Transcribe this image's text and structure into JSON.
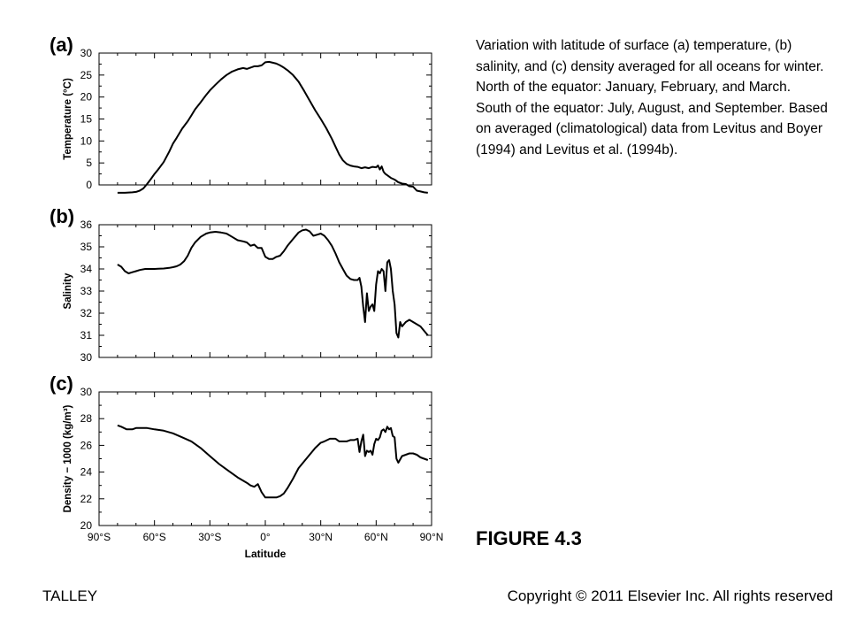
{
  "caption": "Variation with latitude of surface (a) temperature, (b) salinity, and (c) density averaged for all oceans for winter. North of the equator: January, February, and March. South of the equator: July, August, and September. Based on averaged (climatological) data from Levitus and Boyer (1994) and Levitus et al. (1994b).",
  "figure_label": "FIGURE 4.3",
  "footer": {
    "left": "TALLEY",
    "right": "Copyright © 2011 Elsevier Inc. All rights reserved"
  },
  "chart_data": [
    {
      "type": "line",
      "panel_label": "(a)",
      "ylabel": "Temperature (°C)",
      "xlabel": "",
      "xlim": [
        -90,
        90
      ],
      "ylim": [
        0,
        30
      ],
      "yticks": [
        "0",
        "5",
        "10",
        "15",
        "20",
        "25",
        "30"
      ],
      "x": [
        -80,
        -76,
        -72,
        -70,
        -68,
        -66,
        -64,
        -62,
        -60,
        -58,
        -55,
        -52,
        -50,
        -48,
        -45,
        -42,
        -40,
        -38,
        -35,
        -32,
        -30,
        -27,
        -24,
        -21,
        -18,
        -15,
        -12,
        -10,
        -8,
        -6,
        -4,
        -2,
        0,
        2,
        4,
        6,
        8,
        10,
        12,
        15,
        18,
        21,
        24,
        27,
        30,
        33,
        36,
        38,
        40,
        42,
        44,
        46,
        48,
        50,
        52,
        54,
        56,
        58,
        60,
        61,
        62,
        63,
        64,
        65,
        66,
        68,
        70,
        72,
        74,
        76,
        78,
        80,
        82,
        84,
        86,
        88
      ],
      "y": [
        -1.8,
        -1.8,
        -1.7,
        -1.6,
        -1.3,
        -0.8,
        0.2,
        1.3,
        2.5,
        3.5,
        5.2,
        7.6,
        9.4,
        10.7,
        12.8,
        14.5,
        15.8,
        17.2,
        18.8,
        20.5,
        21.5,
        22.8,
        24,
        25,
        25.8,
        26.3,
        26.6,
        26.4,
        26.7,
        27,
        27,
        27.2,
        27.9,
        28,
        27.8,
        27.6,
        27.2,
        26.7,
        26.1,
        25,
        23.5,
        21.4,
        19.2,
        17,
        15,
        12.9,
        10.5,
        8.7,
        6.9,
        5.6,
        4.8,
        4.4,
        4.2,
        4.1,
        3.8,
        4.0,
        3.8,
        4.1,
        4.0,
        4.4,
        3.5,
        4.2,
        3.0,
        2.5,
        2.2,
        1.6,
        1.2,
        0.6,
        0.3,
        0.2,
        -0.3,
        -0.4,
        -1.3,
        -1.5,
        -1.7,
        -1.8
      ]
    },
    {
      "type": "line",
      "panel_label": "(b)",
      "ylabel": "Salinity",
      "xlabel": "",
      "xlim": [
        -90,
        90
      ],
      "ylim": [
        30,
        36
      ],
      "yticks": [
        "30",
        "31",
        "32",
        "33",
        "34",
        "35",
        "36"
      ],
      "x": [
        -80,
        -78,
        -76,
        -74,
        -72,
        -70,
        -68,
        -65,
        -62,
        -60,
        -58,
        -55,
        -52,
        -50,
        -48,
        -46,
        -44,
        -42,
        -40,
        -38,
        -35,
        -32,
        -30,
        -27,
        -24,
        -21,
        -18,
        -15,
        -12,
        -10,
        -8,
        -6,
        -4,
        -2,
        0,
        2,
        4,
        6,
        8,
        10,
        12,
        15,
        18,
        20,
        22,
        24,
        26,
        28,
        30,
        32,
        34,
        36,
        38,
        40,
        42,
        44,
        46,
        48,
        50,
        51,
        52,
        53,
        54,
        55,
        56,
        57,
        58,
        59,
        60,
        61,
        62,
        63,
        64,
        65,
        66,
        67,
        68,
        69,
        70,
        71,
        72,
        73,
        74,
        75,
        76,
        78,
        80,
        82,
        84,
        86,
        88
      ],
      "y": [
        34.2,
        34.1,
        33.9,
        33.8,
        33.85,
        33.9,
        33.95,
        34,
        34,
        34,
        34.01,
        34.02,
        34.05,
        34.08,
        34.12,
        34.2,
        34.35,
        34.6,
        34.95,
        35.2,
        35.45,
        35.6,
        35.65,
        35.68,
        35.65,
        35.6,
        35.45,
        35.3,
        35.25,
        35.2,
        35.05,
        35.1,
        34.95,
        34.95,
        34.55,
        34.45,
        34.45,
        34.55,
        34.6,
        34.8,
        35.05,
        35.35,
        35.65,
        35.75,
        35.78,
        35.7,
        35.5,
        35.55,
        35.6,
        35.5,
        35.3,
        35.05,
        34.7,
        34.3,
        34.0,
        33.7,
        33.55,
        33.5,
        33.5,
        33.6,
        33.2,
        32.3,
        31.6,
        32.9,
        32.1,
        32.3,
        32.4,
        32.1,
        33.3,
        33.9,
        33.8,
        34.0,
        33.9,
        33.0,
        34.3,
        34.4,
        34.0,
        33.0,
        32.4,
        31.1,
        30.9,
        31.6,
        31.4,
        31.5,
        31.6,
        31.7,
        31.6,
        31.5,
        31.4,
        31.2,
        31.0
      ]
    },
    {
      "type": "line",
      "panel_label": "(c)",
      "ylabel": "Density − 1000 (kg/m³)",
      "xlabel": "Latitude",
      "xlim": [
        -90,
        90
      ],
      "ylim": [
        20,
        30
      ],
      "yticks": [
        "20",
        "22",
        "24",
        "26",
        "28",
        "30"
      ],
      "xticks": [
        "90°S",
        "60°S",
        "30°S",
        "0°",
        "30°N",
        "60°N",
        "90°N"
      ],
      "x": [
        -80,
        -78,
        -75,
        -72,
        -70,
        -67,
        -64,
        -60,
        -55,
        -50,
        -45,
        -40,
        -35,
        -30,
        -25,
        -20,
        -15,
        -10,
        -8,
        -6,
        -4,
        -2,
        0,
        2,
        4,
        6,
        8,
        10,
        12,
        15,
        18,
        21,
        24,
        27,
        30,
        32,
        35,
        38,
        40,
        42,
        44,
        46,
        48,
        50,
        51,
        52,
        53,
        54,
        55,
        56,
        57,
        58,
        59,
        60,
        61,
        62,
        63,
        64,
        65,
        66,
        67,
        68,
        69,
        70,
        71,
        72,
        74,
        76,
        78,
        80,
        82,
        84,
        86,
        88
      ],
      "y": [
        27.5,
        27.4,
        27.2,
        27.2,
        27.3,
        27.3,
        27.3,
        27.2,
        27.1,
        26.9,
        26.6,
        26.3,
        25.8,
        25.2,
        24.6,
        24.1,
        23.6,
        23.2,
        23.0,
        22.9,
        23.1,
        22.5,
        22.1,
        22.1,
        22.1,
        22.1,
        22.2,
        22.4,
        22.8,
        23.5,
        24.3,
        24.8,
        25.3,
        25.8,
        26.2,
        26.3,
        26.5,
        26.5,
        26.3,
        26.3,
        26.3,
        26.4,
        26.4,
        26.5,
        25.5,
        26.3,
        26.8,
        25.2,
        25.6,
        25.5,
        25.6,
        25.3,
        26.1,
        26.5,
        26.4,
        26.6,
        27.1,
        27.2,
        27.0,
        27.4,
        27.2,
        27.3,
        26.7,
        26.6,
        25.0,
        24.7,
        25.2,
        25.3,
        25.4,
        25.4,
        25.3,
        25.1,
        25.0,
        24.9
      ]
    }
  ]
}
